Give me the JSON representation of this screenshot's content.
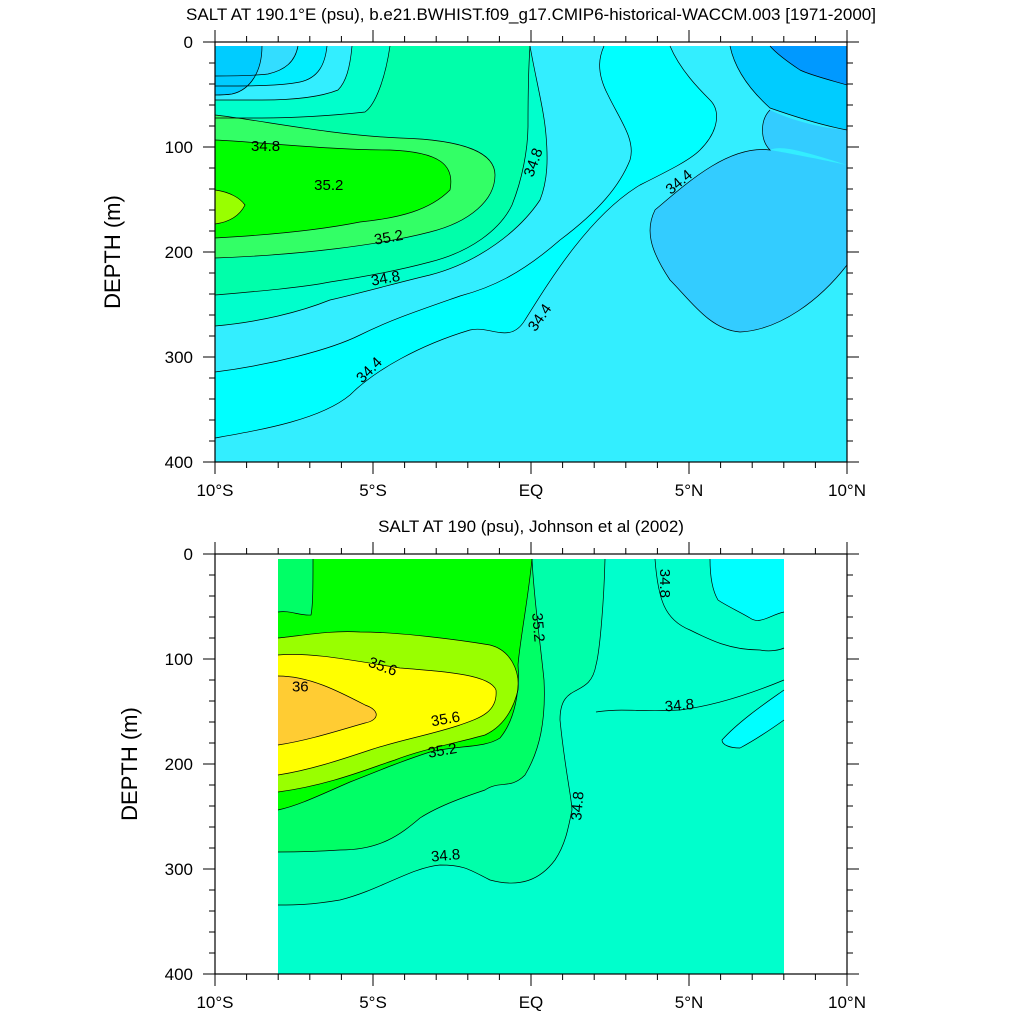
{
  "chart_data": [
    {
      "type": "contour",
      "title": "SALT AT 190.1°E (psu), b.e21.BWHIST.f09_g17.CMIP6-historical-WACCM.003 [1971-2000]",
      "ylabel": "DEPTH (m)",
      "xlabel": "",
      "xlim": [
        -10,
        10
      ],
      "ylim": [
        0,
        400
      ],
      "y_inverted": true,
      "x_ticks": [
        -10,
        -5,
        0,
        5,
        10
      ],
      "x_tick_labels": [
        "10°S",
        "5°S",
        "EQ",
        "5°N",
        "10°N"
      ],
      "y_ticks": [
        0,
        100,
        200,
        300,
        400
      ],
      "y_tick_labels": [
        "0",
        "100",
        "200",
        "300",
        "400"
      ],
      "data_extent_x": [
        -10,
        10
      ],
      "data_extent_y": [
        5,
        400
      ],
      "contour_interval": 0.2,
      "contour_labels": [
        {
          "text": "34.8",
          "lat": -8.4,
          "depth": 100,
          "angle": 0
        },
        {
          "text": "35.2",
          "lat": -6.4,
          "depth": 137,
          "angle": 0
        },
        {
          "text": "35.2",
          "lat": -4.5,
          "depth": 187,
          "angle": -10
        },
        {
          "text": "34.8",
          "lat": -4.6,
          "depth": 226,
          "angle": -10
        },
        {
          "text": "34.4",
          "lat": -5.1,
          "depth": 313,
          "angle": -45
        },
        {
          "text": "34.8",
          "lat": 0.1,
          "depth": 115,
          "angle": -70
        },
        {
          "text": "34.4",
          "lat": 0.3,
          "depth": 263,
          "angle": -55
        },
        {
          "text": "34.4",
          "lat": 4.7,
          "depth": 134,
          "angle": -40
        }
      ]
    },
    {
      "type": "contour",
      "title": "SALT AT 190 (psu), Johnson et al (2002)",
      "ylabel": "DEPTH (m)",
      "xlabel": "",
      "xlim": [
        -10,
        10
      ],
      "ylim": [
        0,
        400
      ],
      "y_inverted": true,
      "x_ticks": [
        -10,
        -5,
        0,
        5,
        10
      ],
      "x_tick_labels": [
        "10°S",
        "5°S",
        "EQ",
        "5°N",
        "10°N"
      ],
      "y_ticks": [
        0,
        100,
        200,
        300,
        400
      ],
      "y_tick_labels": [
        "0",
        "100",
        "200",
        "300",
        "400"
      ],
      "data_extent_x": [
        -8,
        8
      ],
      "data_extent_y": [
        5,
        400
      ],
      "contour_interval": 0.2,
      "contour_labels": [
        {
          "text": "34.8",
          "lat": 4.2,
          "depth": 28,
          "angle": 90
        },
        {
          "text": "35.2",
          "lat": 0.2,
          "depth": 70,
          "angle": 85
        },
        {
          "text": "35.6",
          "lat": -4.7,
          "depth": 108,
          "angle": 20
        },
        {
          "text": "36",
          "lat": -7.3,
          "depth": 127,
          "angle": 0
        },
        {
          "text": "35.6",
          "lat": -2.7,
          "depth": 158,
          "angle": -10
        },
        {
          "text": "35.2",
          "lat": -2.8,
          "depth": 188,
          "angle": -10
        },
        {
          "text": "34.8",
          "lat": 4.7,
          "depth": 145,
          "angle": -5
        },
        {
          "text": "34.8",
          "lat": 1.5,
          "depth": 240,
          "angle": -85
        },
        {
          "text": "34.8",
          "lat": -2.7,
          "depth": 288,
          "angle": -5
        }
      ]
    }
  ]
}
